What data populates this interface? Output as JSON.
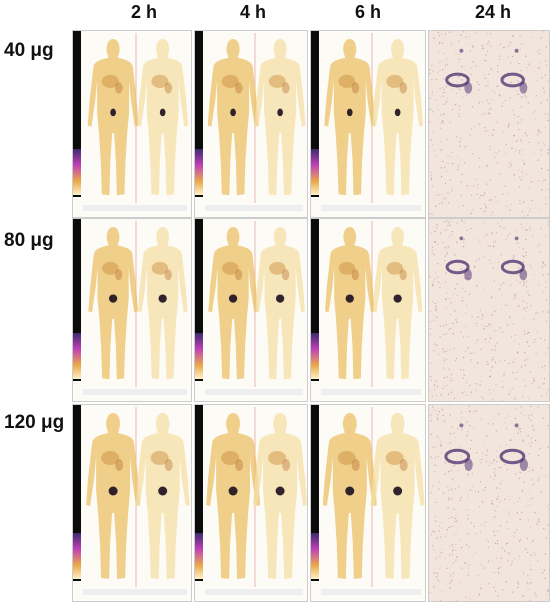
{
  "columns": [
    "2 h",
    "4 h",
    "6 h",
    "24 h"
  ],
  "rows": [
    "40 μg",
    "80 μg",
    "120 μg"
  ],
  "colors": {
    "early_body": "#e9c065",
    "early_body_light": "#f4dfa6",
    "late_noise": "#b98aa6",
    "late_organ": "#4a2a6e",
    "uptake_dark": "#1a0d1e",
    "scale_bar": "#0b0b0b"
  }
}
